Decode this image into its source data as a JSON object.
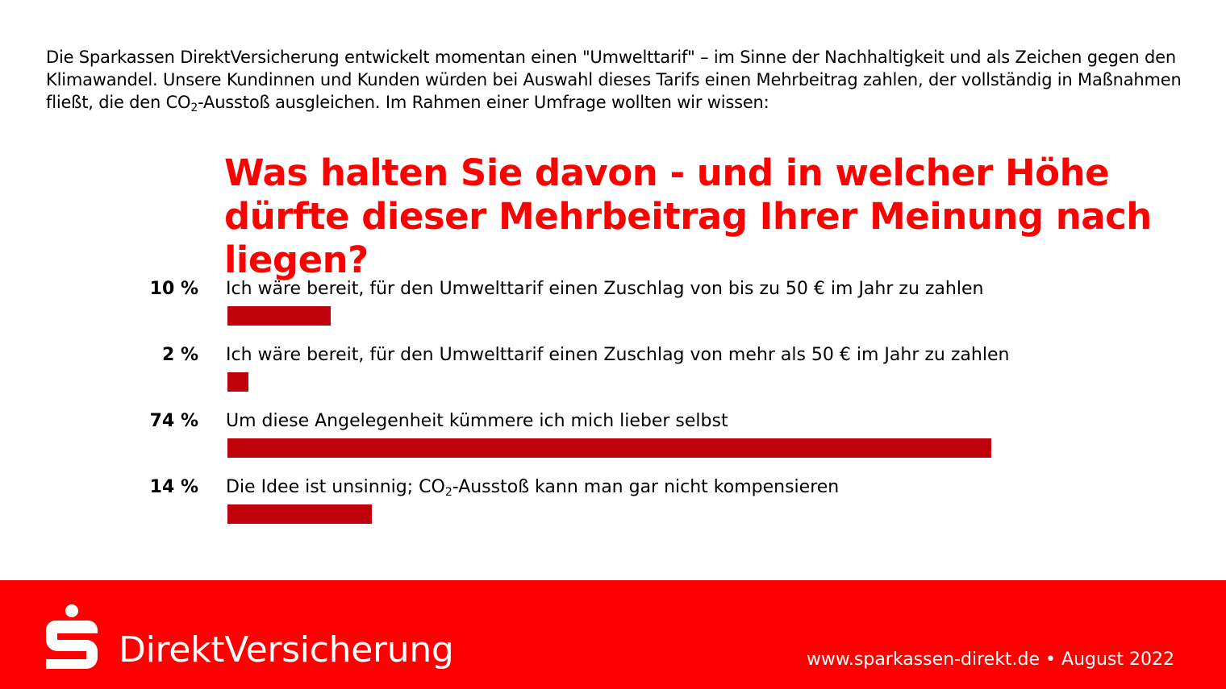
{
  "intro": {
    "part1": "Die Sparkassen DirektVersicherung entwickelt momentan einen \"Umwelttarif\" – im Sinne der Nachhaltigkeit und als Zeichen gegen den Klimawandel. Unsere Kundinnen und Kunden würden bei Auswahl dieses Tarifs einen Mehrbeitrag zahlen, der vollständig in Maßnahmen fließt, die den CO",
    "sub": "2",
    "part2": "-Ausstoß ausgleichen. Im Rahmen einer Umfrage wollten wir wissen:"
  },
  "question": "Was halten Sie davon - und in welcher Höhe dürfte dieser Mehrbeitrag Ihrer Meinung nach liegen?",
  "chart_data": {
    "type": "bar",
    "orientation": "horizontal",
    "title": "Was halten Sie davon - und in welcher Höhe dürfte dieser Mehrbeitrag Ihrer Meinung nach liegen?",
    "unit": "%",
    "xlim": [
      0,
      74
    ],
    "categories": [
      "Ich wäre bereit, für den Umwelttarif einen Zuschlag von bis zu 50 € im Jahr zu zahlen",
      "Ich wäre bereit, für den Umwelttarif einen Zuschlag von mehr als 50 € im Jahr zu zahlen",
      "Um diese Angelegenheit kümmere ich mich lieber selbst",
      "Die Idee ist unsinnig; CO₂-Ausstoß kann man gar nicht kompensieren"
    ],
    "values": [
      10,
      2,
      74,
      14
    ],
    "value_labels": [
      "10 %",
      "2 %",
      "74 %",
      "14 %"
    ],
    "label_parts": [
      {
        "pre": "Ich wäre bereit, für den Umwelttarif einen Zuschlag von bis zu 50 € im Jahr zu zahlen",
        "sub": "",
        "post": ""
      },
      {
        "pre": "Ich wäre bereit, für den Umwelttarif einen Zuschlag von mehr als 50 € im Jahr zu zahlen",
        "sub": "",
        "post": ""
      },
      {
        "pre": "Um diese Angelegenheit kümmere ich mich lieber selbst",
        "sub": "",
        "post": ""
      },
      {
        "pre": "Die Idee ist unsinnig; CO",
        "sub": "2",
        "post": "-Ausstoß kann man gar nicht kompensieren"
      }
    ],
    "bar_color": "#c0000b"
  },
  "footer": {
    "brand": "DirektVersicherung",
    "source": "www.sparkassen-direkt.de • August 2022",
    "background_color": "#ff0000",
    "logo_icon": "sparkasse-s-icon"
  }
}
